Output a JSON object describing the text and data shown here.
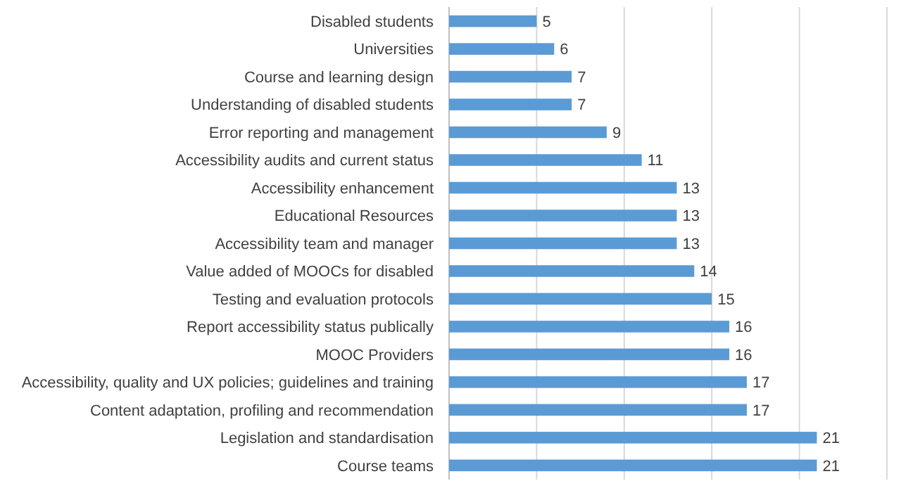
{
  "chart_data": {
    "type": "bar",
    "orientation": "horizontal",
    "categories": [
      "Disabled students",
      "Universities",
      "Course and learning design",
      "Understanding of disabled students",
      "Error reporting and management",
      "Accessibility audits and current status",
      "Accessibility enhancement",
      "Educational Resources",
      "Accessibility team and manager",
      "Value added of MOOCs for disabled",
      "Testing and evaluation protocols",
      "Report accessibility status publically",
      "MOOC Providers",
      "Accessibility, quality and UX policies; guidelines and training",
      "Content adaptation, profiling and recommendation",
      "Legislation and standardisation",
      "Course teams"
    ],
    "values": [
      5,
      6,
      7,
      7,
      9,
      11,
      13,
      13,
      13,
      14,
      15,
      16,
      16,
      17,
      17,
      21,
      21
    ],
    "color": "#5b9bd5",
    "xlim": [
      0,
      25
    ],
    "xticks": [
      {
        "value": 0,
        "label": null
      },
      {
        "value": 5,
        "label": null
      },
      {
        "value": 10,
        "label": null
      },
      {
        "value": 15,
        "label": null
      },
      {
        "value": 20,
        "label": null
      },
      {
        "value": 25,
        "label": null
      }
    ],
    "tick_labels": "y",
    "grid": "x",
    "data_labels": true
  }
}
